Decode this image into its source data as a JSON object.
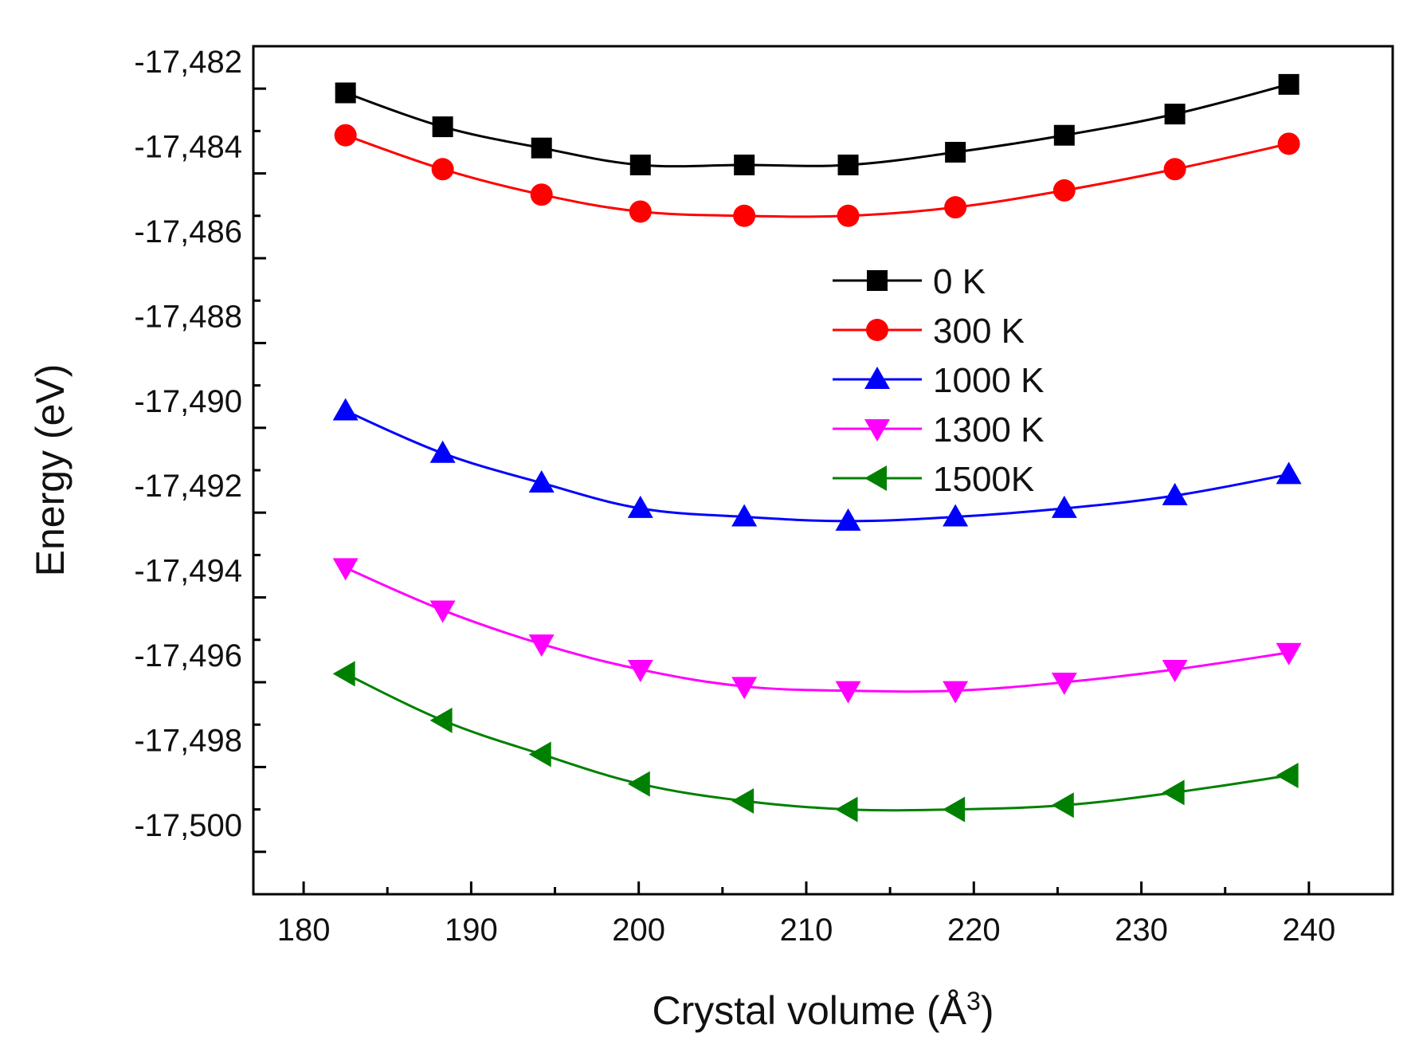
{
  "chart_data": {
    "type": "line",
    "title": "",
    "xlabel": "Crystal volume (Å",
    "xlabel_superscript": "3",
    "xlabel_suffix": ")",
    "ylabel": "Energy (eV)",
    "xlim": [
      177,
      245
    ],
    "ylim": [
      -17501,
      -17481
    ],
    "x_ticks": [
      180,
      190,
      200,
      210,
      220,
      230,
      240
    ],
    "x_tick_labels": [
      "180",
      "190",
      "200",
      "210",
      "220",
      "230",
      "240"
    ],
    "y_ticks": [
      -17500,
      -17498,
      -17496,
      -17494,
      -17492,
      -17490,
      -17488,
      -17486,
      -17484,
      -17482
    ],
    "y_tick_labels": [
      "-17,500",
      "-17,498",
      "-17,496",
      "-17,494",
      "-17,492",
      "-17,490",
      "-17,488",
      "-17,486",
      "-17,484",
      "-17,482"
    ],
    "legend_position": "center-right",
    "x": [
      182.5,
      188.3,
      194.2,
      200.1,
      206.3,
      212.5,
      218.9,
      225.4,
      232.0,
      238.8
    ],
    "series": [
      {
        "name": "0 K",
        "color": "#000000",
        "marker": "square",
        "values": [
          -17482.1,
          -17482.9,
          -17483.4,
          -17483.8,
          -17483.8,
          -17483.8,
          -17483.5,
          -17483.1,
          -17482.6,
          -17481.9
        ]
      },
      {
        "name": "300 K",
        "color": "#ff0000",
        "marker": "circle",
        "values": [
          -17483.1,
          -17483.9,
          -17484.5,
          -17484.9,
          -17485.0,
          -17485.0,
          -17484.8,
          -17484.4,
          -17483.9,
          -17483.3
        ]
      },
      {
        "name": "1000 K",
        "color": "#0000ff",
        "marker": "triangle-up",
        "values": [
          -17489.6,
          -17490.6,
          -17491.3,
          -17491.9,
          -17492.1,
          -17492.2,
          -17492.1,
          -17491.9,
          -17491.6,
          -17491.1
        ]
      },
      {
        "name": "1300 K",
        "color": "#ff00ff",
        "marker": "triangle-down",
        "values": [
          -17493.3,
          -17494.3,
          -17495.1,
          -17495.7,
          -17496.1,
          -17496.2,
          -17496.2,
          -17496.0,
          -17495.7,
          -17495.3
        ]
      },
      {
        "name": "1500K",
        "color": "#008000",
        "marker": "triangle-left",
        "values": [
          -17495.8,
          -17496.9,
          -17497.7,
          -17498.4,
          -17498.8,
          -17499.0,
          -17499.0,
          -17498.9,
          -17498.6,
          -17498.2
        ]
      }
    ]
  }
}
